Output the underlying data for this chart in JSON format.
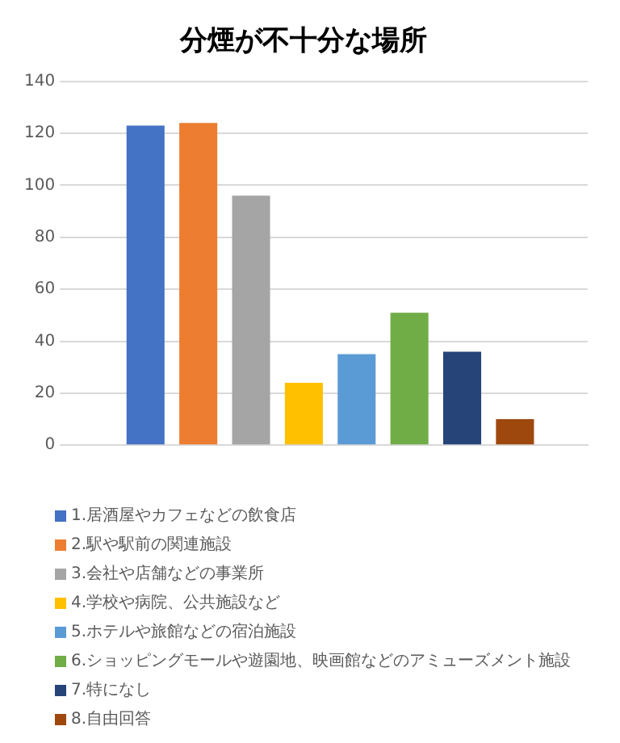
{
  "chart_data": {
    "type": "bar",
    "title": "分煙が不十分な場所",
    "categories": [
      null
    ],
    "series": [
      {
        "name": "1.居酒屋やカフェなどの飲食店",
        "color": "#4472c4",
        "values": [
          123
        ]
      },
      {
        "name": "2.駅や駅前の関連施設",
        "color": "#ed7d31",
        "values": [
          124
        ]
      },
      {
        "name": "3.会社や店舗などの事業所",
        "color": "#a5a5a5",
        "values": [
          96
        ]
      },
      {
        "name": "4.学校や病院、公共施設など",
        "color": "#ffc000",
        "values": [
          24
        ]
      },
      {
        "name": "5.ホテルや旅館などの宿泊施設",
        "color": "#5b9bd5",
        "values": [
          35
        ]
      },
      {
        "name": "6.ショッピングモールや遊園地、映画館などのアミューズメント施設",
        "color": "#70ad47",
        "values": [
          51
        ]
      },
      {
        "name": "7.特になし",
        "color": "#264478",
        "values": [
          36
        ]
      },
      {
        "name": "8.自由回答",
        "color": "#9e480e",
        "values": [
          10
        ]
      }
    ],
    "ylim": [
      0,
      140
    ],
    "yticks": [
      0,
      20,
      40,
      60,
      80,
      100,
      120,
      140
    ],
    "grid": "y",
    "legend": "bottom"
  }
}
